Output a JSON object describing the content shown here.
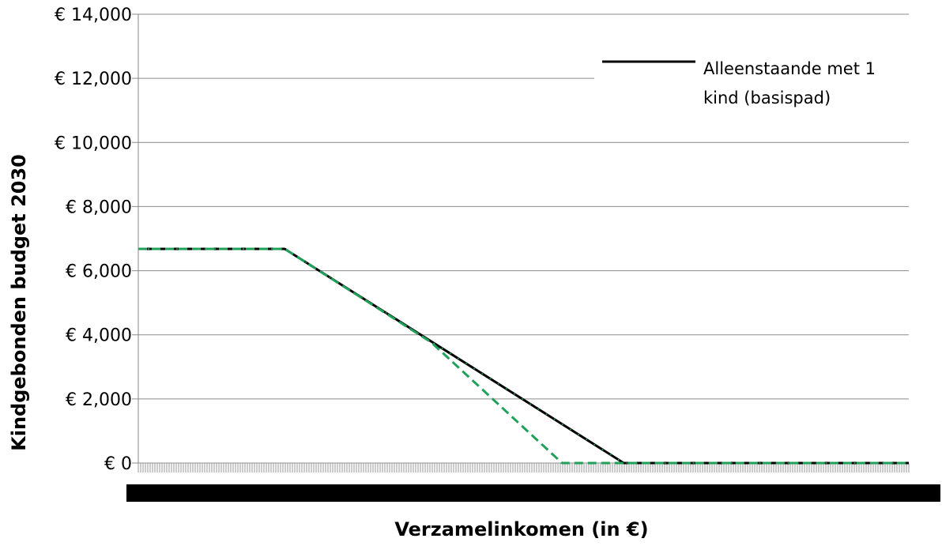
{
  "chart_data": {
    "type": "line",
    "title": "",
    "xlabel": "Verzamelinkomen (in €)",
    "ylabel": "Kindgebonden budget 2030",
    "ylim": [
      0,
      14000
    ],
    "yticks": [
      0,
      2000,
      4000,
      6000,
      8000,
      10000,
      12000,
      14000
    ],
    "ytick_labels": [
      "€ 0",
      "€ 2,000",
      "€ 4,000",
      "€ 6,000",
      "€ 8,000",
      "€ 10,000",
      "€ 12,000",
      "€ 14,000"
    ],
    "xlim": [
      0,
      100
    ],
    "grid": true,
    "legend_position": "top-right",
    "legend_label": "Alleenstaande met 1 kind (basispad)",
    "series": [
      {
        "name": "Alleenstaande met 1 kind (basispad)",
        "color": "#000000",
        "style": "solid",
        "x": [
          0,
          19,
          63,
          100
        ],
        "y": [
          6680,
          6680,
          0,
          0
        ]
      },
      {
        "color": "#1fa15a",
        "style": "dashed",
        "x": [
          0,
          19,
          38,
          55,
          100
        ],
        "y": [
          6680,
          6680,
          3770,
          0,
          0
        ]
      }
    ]
  }
}
